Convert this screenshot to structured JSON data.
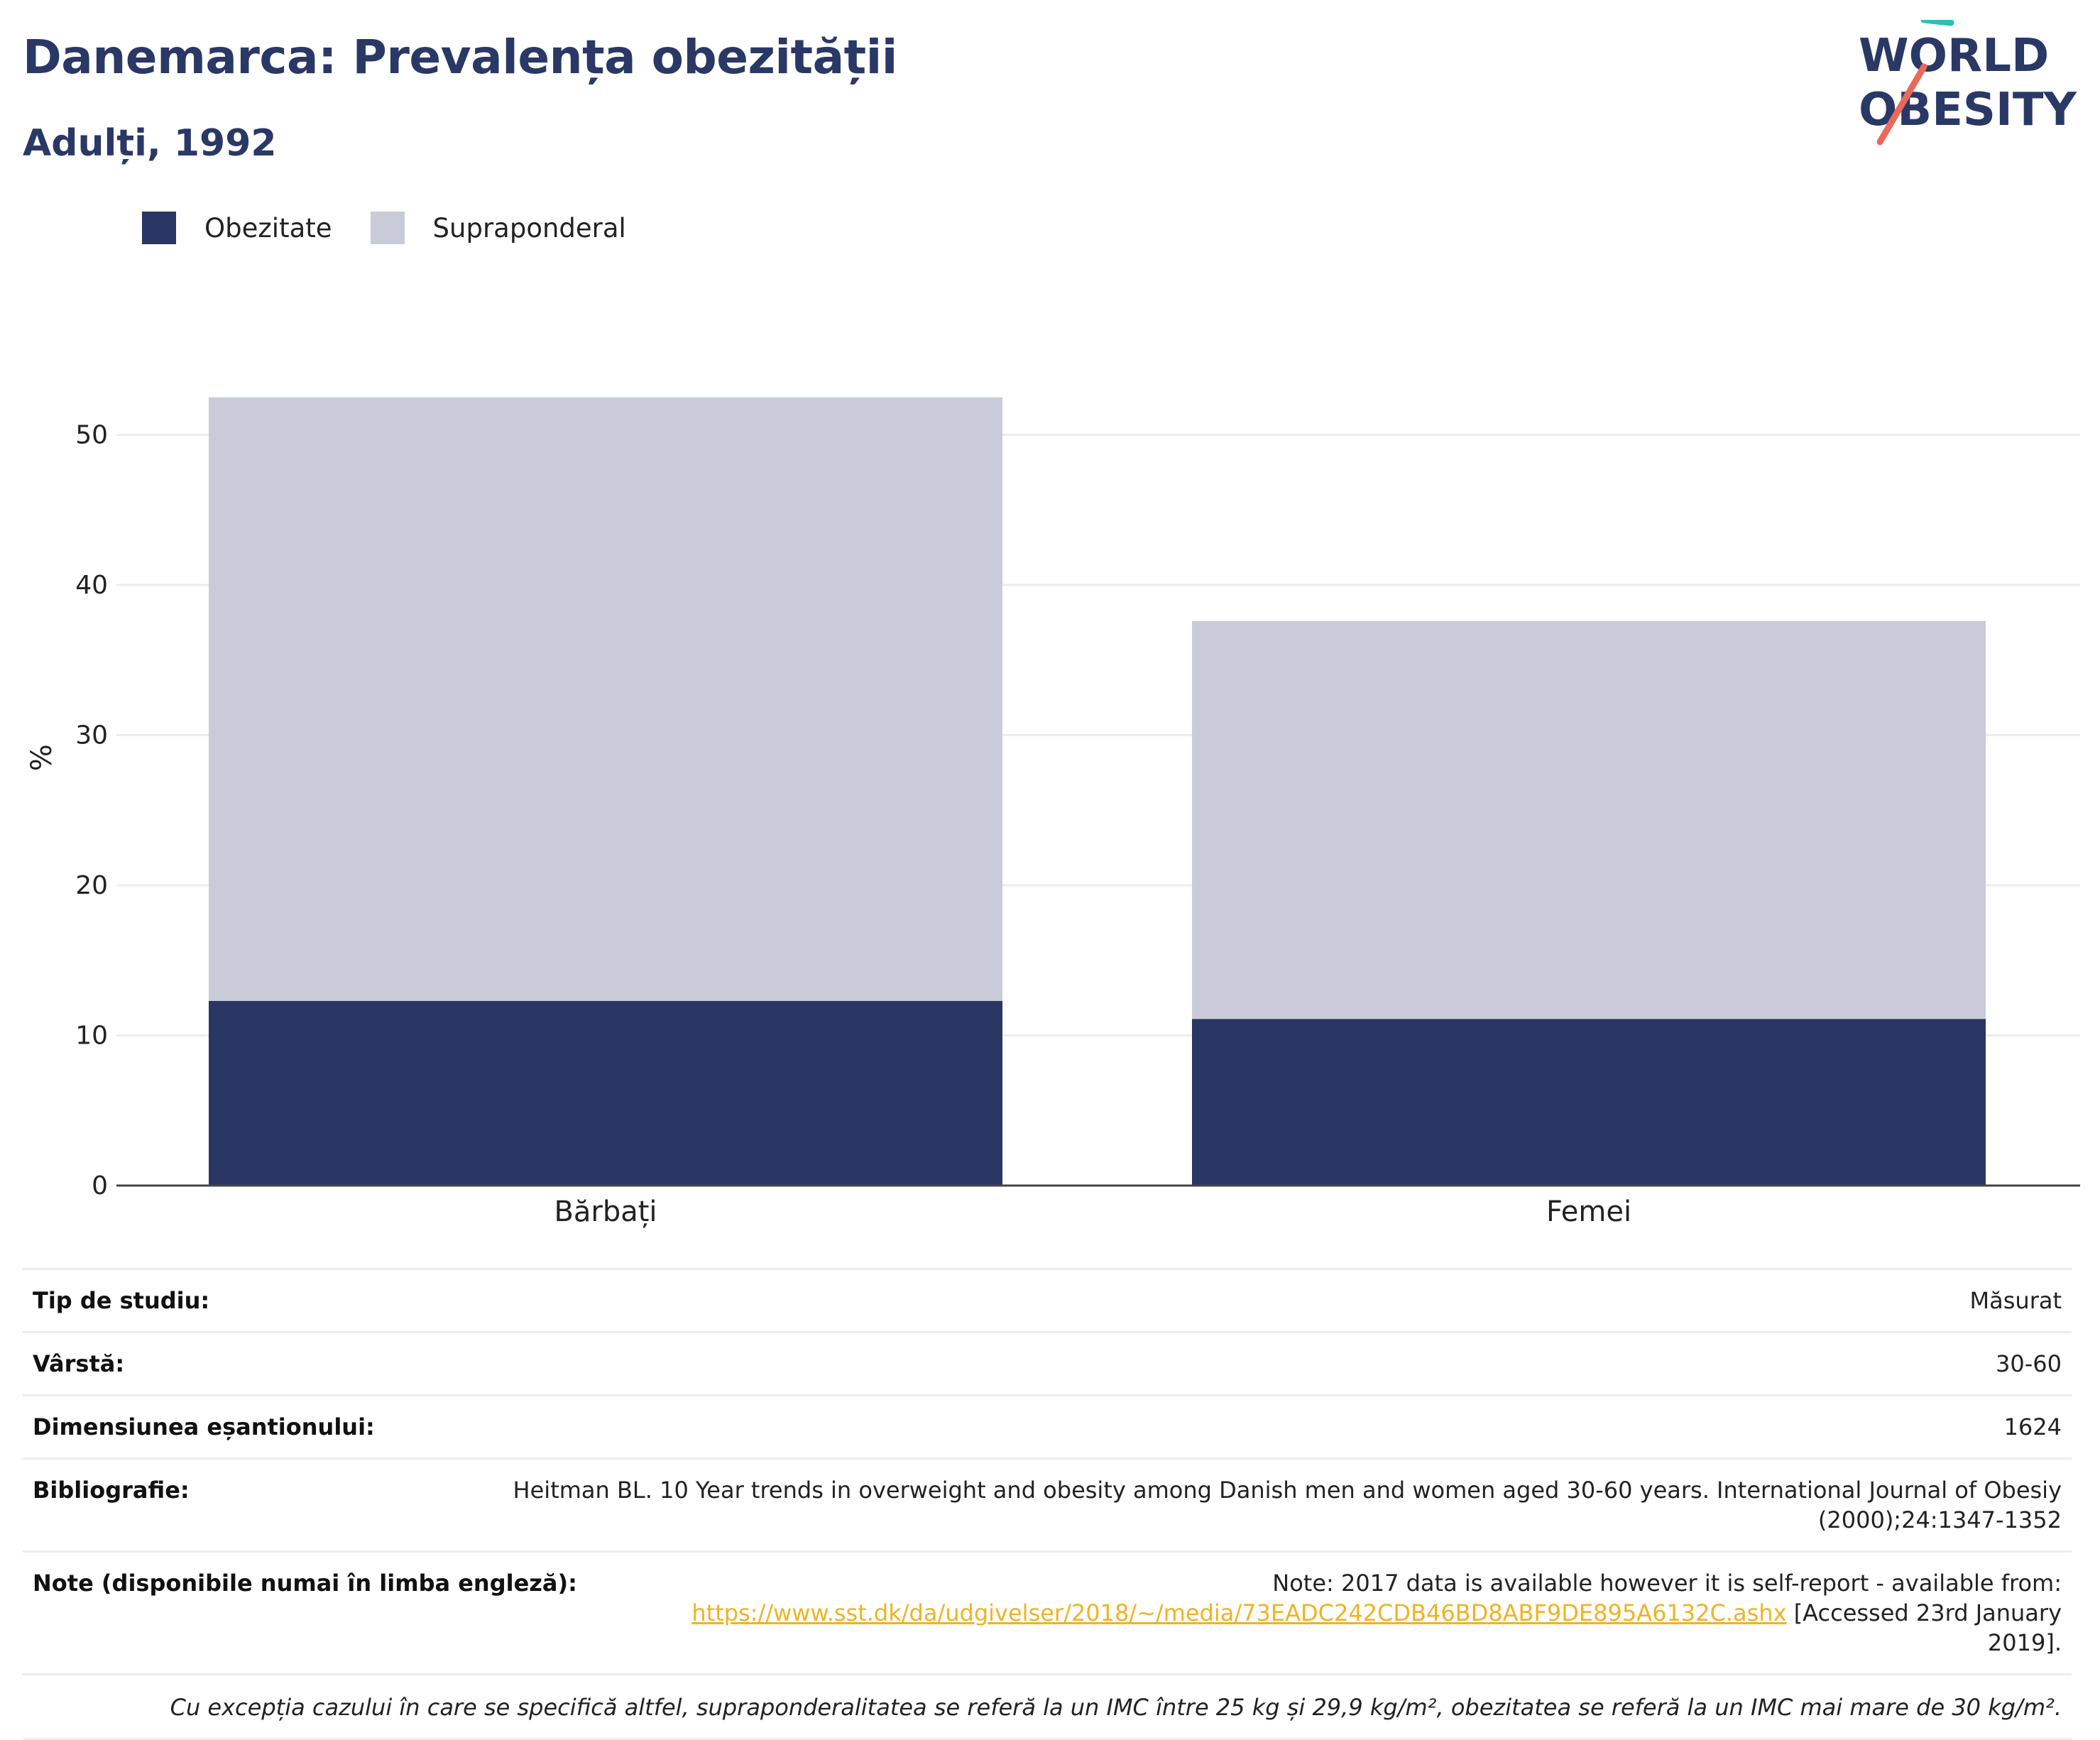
{
  "header": {
    "title": "Danemarca: Prevalența obezității",
    "subtitle": "Adulți, 1992"
  },
  "logo": {
    "line1": "WORLD",
    "line2": "OBESITY"
  },
  "colors": {
    "obesity": "#2a3664",
    "overweight": "#c9ccd8",
    "accent_teal": "#2ebfb3",
    "accent_red": "#e96a5a",
    "link": "#f0b323"
  },
  "chart_data": {
    "type": "bar",
    "stacked": true,
    "categories": [
      "Bărbați",
      "Femei"
    ],
    "series": [
      {
        "name": "Obezitate",
        "values": [
          12.3,
          11.1
        ]
      },
      {
        "name": "Supraponderal",
        "values": [
          40.2,
          26.5
        ]
      }
    ],
    "ylabel": "%",
    "ylim": [
      0,
      55
    ],
    "yticks": [
      "0",
      "10",
      "20",
      "30",
      "40",
      "50"
    ],
    "grid": true,
    "legend": "top-left"
  },
  "info": {
    "rows": [
      {
        "label": "Tip de studiu:",
        "value": "Măsurat"
      },
      {
        "label": "Vârstă:",
        "value": "30-60"
      },
      {
        "label": "Dimensiunea eșantionului:",
        "value": "1624"
      },
      {
        "label": "Bibliografie:",
        "value": "Heitman BL. 10 Year trends in overweight and obesity among Danish men and women aged 30-60 years. International Journal of Obesiy (2000);24:1347-1352"
      }
    ],
    "notes": {
      "label": "Note (disponibile numai în limba engleză):",
      "line1": "Note: 2017 data is available however it is self-report - available from:",
      "link": "https://www.sst.dk/da/udgivelser/2018/~/media/73EADC242CDB46BD8ABF9DE895A6132C.ashx",
      "suffix": " [Accessed 23rd January 2019]."
    },
    "footnote": "Cu excepția cazului în care se specifică altfel, supraponderalitatea se referă la un IMC între 25 kg și 29,9 kg/m², obezitatea se referă la un IMC mai mare de 30 kg/m²."
  }
}
